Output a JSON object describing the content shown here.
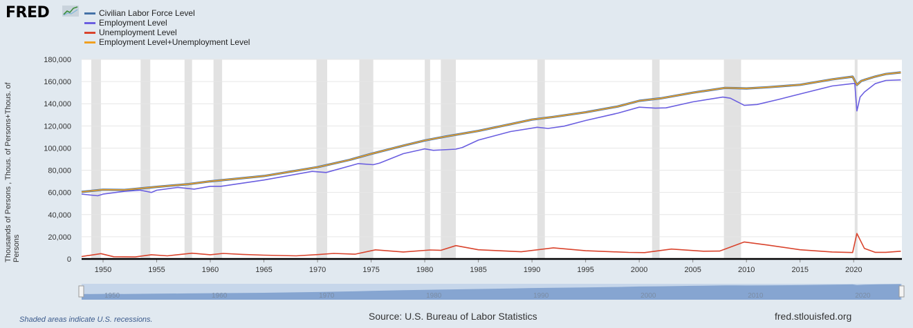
{
  "brand": {
    "logo_text": "FRED"
  },
  "legend": [
    {
      "label": "Civilian Labor Force Level",
      "color": "#4572a7"
    },
    {
      "label": "Employment Level",
      "color": "#6a5ee0"
    },
    {
      "label": "Unemployment Level",
      "color": "#d9432c"
    },
    {
      "label": "Employment Level+Unemployment Level",
      "color": "#f0a020"
    }
  ],
  "chart_data": {
    "type": "line",
    "ylabel": "Thousands of Persons , Thous. of Persons+Thous. of Persons",
    "xlim": [
      1948,
      2024.5
    ],
    "ylim": [
      0,
      180000
    ],
    "y_ticks": [
      "0",
      "20,000",
      "40,000",
      "60,000",
      "80,000",
      "100,000",
      "120,000",
      "140,000",
      "160,000",
      "180,000"
    ],
    "x_ticks": [
      "1950",
      "1955",
      "1960",
      "1965",
      "1970",
      "1975",
      "1980",
      "1985",
      "1990",
      "1995",
      "2000",
      "2005",
      "2010",
      "2015",
      "2020"
    ],
    "grid": true,
    "legend_position": "top-left",
    "recessions": [
      [
        1948.9,
        1949.8
      ],
      [
        1953.5,
        1954.4
      ],
      [
        1957.6,
        1958.3
      ],
      [
        1960.3,
        1961.1
      ],
      [
        1969.9,
        1970.9
      ],
      [
        1973.9,
        1975.2
      ],
      [
        1980.0,
        1980.5
      ],
      [
        1981.5,
        1982.9
      ],
      [
        1990.5,
        1991.2
      ],
      [
        2001.2,
        2001.9
      ],
      [
        2007.9,
        2009.5
      ],
      [
        2020.1,
        2020.3
      ]
    ],
    "series": [
      {
        "name": "Civilian Labor Force Level",
        "color": "#4572a7",
        "x": [
          1948,
          1950,
          1952,
          1955,
          1958,
          1960,
          1965,
          1970,
          1973,
          1975,
          1978,
          1980,
          1982,
          1985,
          1988,
          1990,
          1992,
          1995,
          1998,
          2000,
          2002,
          2005,
          2008,
          2009,
          2010,
          2012,
          2015,
          2018,
          2019.9,
          2020.3,
          2020.7,
          2021,
          2022,
          2023,
          2024.4
        ],
        "y": [
          60500,
          62500,
          62200,
          65000,
          67500,
          70000,
          74800,
          82800,
          89400,
          94800,
          102200,
          106900,
          110500,
          115500,
          121600,
          125700,
          128100,
          132300,
          137500,
          142600,
          144900,
          150000,
          154300,
          154100,
          153800,
          154900,
          157100,
          162000,
          164400,
          157000,
          160500,
          161500,
          164500,
          166800,
          168200
        ]
      },
      {
        "name": "Employment Level",
        "color": "#6a5ee0",
        "x": [
          1948,
          1949.5,
          1950,
          1952,
          1953.5,
          1954.5,
          1955,
          1957,
          1958.5,
          1960,
          1961,
          1965,
          1969.5,
          1970.8,
          1973.8,
          1975.2,
          1975.8,
          1978,
          1980,
          1980.8,
          1982.9,
          1983.5,
          1985,
          1988,
          1990.5,
          1991.5,
          1993,
          1995,
          1998,
          2000,
          2001.5,
          2002.5,
          2005,
          2007.8,
          2008.5,
          2009.8,
          2011,
          2013,
          2015,
          2018,
          2020.1,
          2020.3,
          2020.6,
          2021,
          2022,
          2023,
          2024.4
        ],
        "y": [
          58500,
          57000,
          58500,
          61000,
          62000,
          60000,
          62000,
          64500,
          63000,
          65500,
          65500,
          71200,
          79000,
          78000,
          86000,
          85000,
          86500,
          95000,
          99300,
          98000,
          99000,
          100500,
          107200,
          114900,
          118800,
          117700,
          119800,
          124900,
          131500,
          136900,
          136000,
          136300,
          141700,
          146000,
          145000,
          138500,
          139300,
          143900,
          148800,
          156000,
          158400,
          133500,
          146000,
          150500,
          158100,
          161000,
          161500
        ]
      },
      {
        "name": "Unemployment Level",
        "color": "#d9432c",
        "x": [
          1948,
          1949.8,
          1951,
          1953,
          1954.5,
          1956,
          1958.3,
          1960,
          1961.2,
          1963,
          1965,
          1968,
          1970,
          1971.5,
          1973.5,
          1975.4,
          1978,
          1980.5,
          1981.5,
          1982.9,
          1985,
          1989,
          1992,
          1995,
          1999,
          2000.5,
          2003,
          2006,
          2007.5,
          2009.8,
          2012,
          2015,
          2018,
          2019.9,
          2020.3,
          2021,
          2022,
          2023,
          2024.4
        ],
        "y": [
          2200,
          4800,
          2000,
          1800,
          3800,
          2800,
          5200,
          3800,
          5000,
          4100,
          3400,
          2800,
          3900,
          5000,
          4300,
          8200,
          6300,
          8100,
          7800,
          12000,
          8300,
          6500,
          10000,
          7400,
          5900,
          5700,
          8900,
          7000,
          7100,
          15300,
          12500,
          8300,
          6300,
          5800,
          23000,
          9500,
          6000,
          6000,
          7000
        ]
      },
      {
        "name": "Employment Level+Unemployment Level",
        "color": "#f0a020",
        "x": [
          1948,
          1950,
          1952,
          1955,
          1958,
          1960,
          1965,
          1970,
          1973,
          1975,
          1978,
          1980,
          1982,
          1985,
          1988,
          1990,
          1992,
          1995,
          1998,
          2000,
          2002,
          2005,
          2008,
          2009,
          2010,
          2012,
          2015,
          2018,
          2019.9,
          2020.3,
          2020.7,
          2021,
          2022,
          2023,
          2024.4
        ],
        "y": [
          60500,
          62500,
          62200,
          65000,
          67500,
          70000,
          74800,
          82800,
          89400,
          94800,
          102200,
          106900,
          110500,
          115500,
          121600,
          125700,
          128100,
          132300,
          137500,
          142600,
          144900,
          150000,
          154300,
          154100,
          153800,
          154900,
          157100,
          162000,
          164400,
          157000,
          160500,
          161500,
          164500,
          166800,
          168200
        ]
      }
    ]
  },
  "navigator": {
    "ticks": [
      "1950",
      "1960",
      "1970",
      "1980",
      "1990",
      "2000",
      "2010",
      "2020"
    ],
    "range": [
      1948,
      2024.5
    ]
  },
  "footer": {
    "note": "Shaded areas indicate U.S. recessions.",
    "source": "Source: U.S. Bureau of Labor Statistics",
    "site": "fred.stlouisfed.org"
  }
}
